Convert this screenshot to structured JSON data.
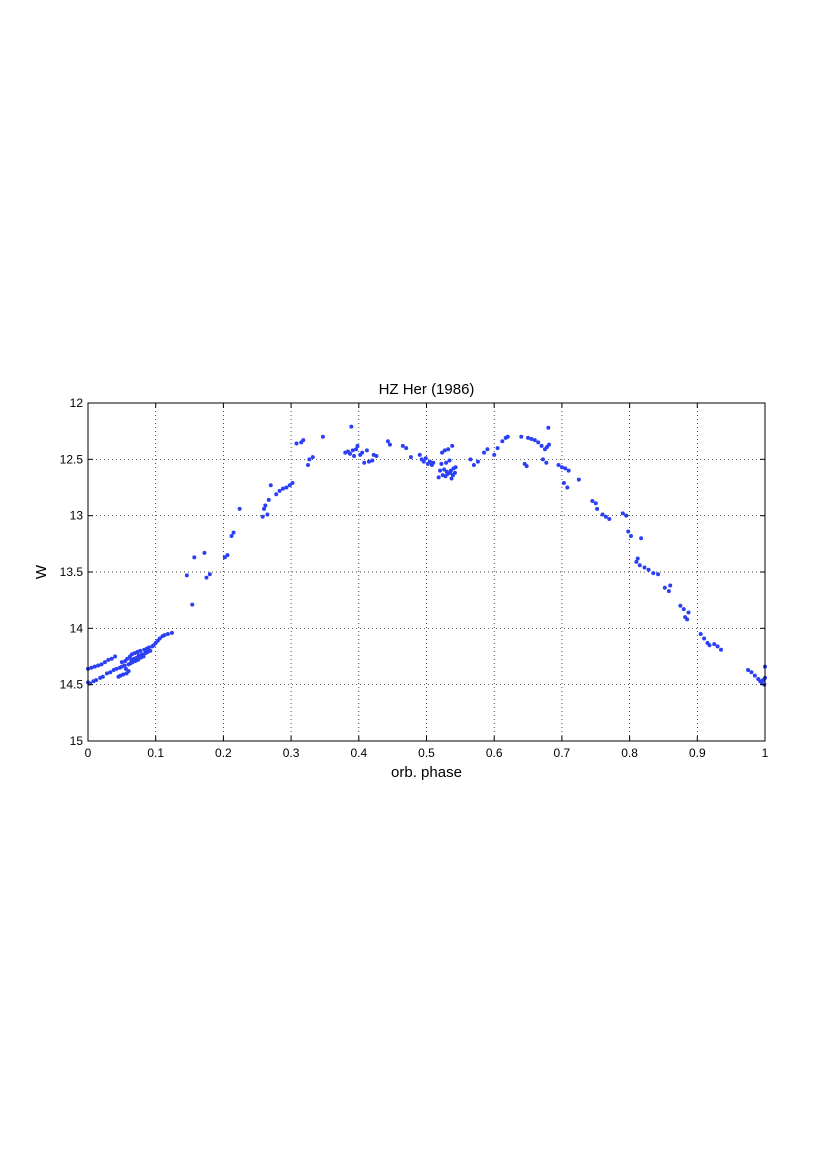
{
  "chart_data": {
    "type": "scatter",
    "title": "HZ Her (1986)",
    "xlabel": "orb. phase",
    "ylabel": "W",
    "xlim": [
      0,
      1
    ],
    "ylim": [
      12,
      15
    ],
    "y_reversed": true,
    "grid": true,
    "x_ticks": [
      "0",
      "0.1",
      "0.2",
      "0.3",
      "0.4",
      "0.5",
      "0.6",
      "0.7",
      "0.8",
      "0.9",
      "1"
    ],
    "y_ticks": [
      "12",
      "12.5",
      "13",
      "13.5",
      "14",
      "14.5",
      "15"
    ],
    "marker_color": "#2b3ff5",
    "series": [
      {
        "points": [
          [
            0.0,
            14.36
          ],
          [
            0.0,
            14.48
          ],
          [
            0.003,
            14.49
          ],
          [
            0.005,
            14.35
          ],
          [
            0.008,
            14.47
          ],
          [
            0.01,
            14.34
          ],
          [
            0.012,
            14.46
          ],
          [
            0.015,
            14.33
          ],
          [
            0.018,
            14.44
          ],
          [
            0.02,
            14.32
          ],
          [
            0.022,
            14.43
          ],
          [
            0.025,
            14.3
          ],
          [
            0.028,
            14.4
          ],
          [
            0.03,
            14.28
          ],
          [
            0.033,
            14.39
          ],
          [
            0.035,
            14.27
          ],
          [
            0.038,
            14.37
          ],
          [
            0.04,
            14.25
          ],
          [
            0.042,
            14.36
          ],
          [
            0.045,
            14.43
          ],
          [
            0.047,
            14.35
          ],
          [
            0.048,
            14.42
          ],
          [
            0.05,
            14.34
          ],
          [
            0.05,
            14.3
          ],
          [
            0.052,
            14.41
          ],
          [
            0.054,
            14.33
          ],
          [
            0.055,
            14.29
          ],
          [
            0.056,
            14.36
          ],
          [
            0.057,
            14.4
          ],
          [
            0.058,
            14.27
          ],
          [
            0.06,
            14.32
          ],
          [
            0.06,
            14.38
          ],
          [
            0.062,
            14.25
          ],
          [
            0.063,
            14.31
          ],
          [
            0.064,
            14.28
          ],
          [
            0.065,
            14.23
          ],
          [
            0.066,
            14.3
          ],
          [
            0.068,
            14.27
          ],
          [
            0.069,
            14.22
          ],
          [
            0.07,
            14.29
          ],
          [
            0.072,
            14.26
          ],
          [
            0.073,
            14.21
          ],
          [
            0.074,
            14.28
          ],
          [
            0.075,
            14.24
          ],
          [
            0.077,
            14.2
          ],
          [
            0.078,
            14.26
          ],
          [
            0.08,
            14.23
          ],
          [
            0.082,
            14.25
          ],
          [
            0.083,
            14.19
          ],
          [
            0.085,
            14.22
          ],
          [
            0.087,
            14.18
          ],
          [
            0.088,
            14.21
          ],
          [
            0.09,
            14.17
          ],
          [
            0.092,
            14.2
          ],
          [
            0.095,
            14.16
          ],
          [
            0.097,
            14.15
          ],
          [
            0.1,
            14.13
          ],
          [
            0.103,
            14.11
          ],
          [
            0.106,
            14.09
          ],
          [
            0.11,
            14.07
          ],
          [
            0.113,
            14.06
          ],
          [
            0.118,
            14.05
          ],
          [
            0.124,
            14.04
          ],
          [
            0.146,
            13.53
          ],
          [
            0.154,
            13.79
          ],
          [
            0.157,
            13.37
          ],
          [
            0.172,
            13.33
          ],
          [
            0.175,
            13.55
          ],
          [
            0.18,
            13.52
          ],
          [
            0.202,
            13.37
          ],
          [
            0.206,
            13.35
          ],
          [
            0.212,
            13.18
          ],
          [
            0.215,
            13.15
          ],
          [
            0.224,
            12.94
          ],
          [
            0.258,
            13.01
          ],
          [
            0.26,
            12.94
          ],
          [
            0.262,
            12.91
          ],
          [
            0.265,
            12.99
          ],
          [
            0.267,
            12.86
          ],
          [
            0.27,
            12.73
          ],
          [
            0.278,
            12.81
          ],
          [
            0.283,
            12.78
          ],
          [
            0.288,
            12.76
          ],
          [
            0.293,
            12.75
          ],
          [
            0.298,
            12.73
          ],
          [
            0.302,
            12.71
          ],
          [
            0.308,
            12.36
          ],
          [
            0.315,
            12.35
          ],
          [
            0.318,
            12.33
          ],
          [
            0.325,
            12.55
          ],
          [
            0.327,
            12.5
          ],
          [
            0.332,
            12.48
          ],
          [
            0.347,
            12.3
          ],
          [
            0.38,
            12.44
          ],
          [
            0.384,
            12.43
          ],
          [
            0.387,
            12.45
          ],
          [
            0.389,
            12.21
          ],
          [
            0.391,
            12.42
          ],
          [
            0.393,
            12.47
          ],
          [
            0.396,
            12.41
          ],
          [
            0.398,
            12.38
          ],
          [
            0.402,
            12.46
          ],
          [
            0.405,
            12.44
          ],
          [
            0.408,
            12.53
          ],
          [
            0.412,
            12.42
          ],
          [
            0.415,
            12.52
          ],
          [
            0.42,
            12.51
          ],
          [
            0.422,
            12.46
          ],
          [
            0.426,
            12.47
          ],
          [
            0.443,
            12.34
          ],
          [
            0.446,
            12.37
          ],
          [
            0.465,
            12.38
          ],
          [
            0.47,
            12.4
          ],
          [
            0.477,
            12.48
          ],
          [
            0.49,
            12.46
          ],
          [
            0.493,
            12.5
          ],
          [
            0.496,
            12.52
          ],
          [
            0.499,
            12.49
          ],
          [
            0.502,
            12.54
          ],
          [
            0.505,
            12.52
          ],
          [
            0.508,
            12.55
          ],
          [
            0.51,
            12.53
          ],
          [
            0.518,
            12.66
          ],
          [
            0.52,
            12.6
          ],
          [
            0.522,
            12.54
          ],
          [
            0.523,
            12.44
          ],
          [
            0.524,
            12.64
          ],
          [
            0.526,
            12.59
          ],
          [
            0.527,
            12.42
          ],
          [
            0.528,
            12.65
          ],
          [
            0.529,
            12.53
          ],
          [
            0.53,
            12.61
          ],
          [
            0.531,
            12.63
          ],
          [
            0.532,
            12.41
          ],
          [
            0.534,
            12.51
          ],
          [
            0.535,
            12.62
          ],
          [
            0.536,
            12.6
          ],
          [
            0.537,
            12.67
          ],
          [
            0.538,
            12.38
          ],
          [
            0.539,
            12.64
          ],
          [
            0.54,
            12.58
          ],
          [
            0.542,
            12.62
          ],
          [
            0.543,
            12.57
          ],
          [
            0.565,
            12.5
          ],
          [
            0.57,
            12.55
          ],
          [
            0.576,
            12.52
          ],
          [
            0.585,
            12.44
          ],
          [
            0.59,
            12.41
          ],
          [
            0.6,
            12.46
          ],
          [
            0.605,
            12.4
          ],
          [
            0.612,
            12.34
          ],
          [
            0.617,
            12.31
          ],
          [
            0.62,
            12.3
          ],
          [
            0.64,
            12.3
          ],
          [
            0.645,
            12.54
          ],
          [
            0.648,
            12.56
          ],
          [
            0.65,
            12.31
          ],
          [
            0.655,
            12.32
          ],
          [
            0.66,
            12.33
          ],
          [
            0.665,
            12.35
          ],
          [
            0.67,
            12.38
          ],
          [
            0.672,
            12.5
          ],
          [
            0.675,
            12.41
          ],
          [
            0.677,
            12.53
          ],
          [
            0.678,
            12.39
          ],
          [
            0.68,
            12.22
          ],
          [
            0.681,
            12.37
          ],
          [
            0.695,
            12.55
          ],
          [
            0.7,
            12.57
          ],
          [
            0.703,
            12.71
          ],
          [
            0.705,
            12.58
          ],
          [
            0.708,
            12.75
          ],
          [
            0.71,
            12.6
          ],
          [
            0.725,
            12.68
          ],
          [
            0.745,
            12.87
          ],
          [
            0.75,
            12.89
          ],
          [
            0.752,
            12.94
          ],
          [
            0.76,
            12.99
          ],
          [
            0.765,
            13.01
          ],
          [
            0.77,
            13.03
          ],
          [
            0.79,
            12.98
          ],
          [
            0.795,
            13.0
          ],
          [
            0.798,
            13.14
          ],
          [
            0.802,
            13.18
          ],
          [
            0.81,
            13.41
          ],
          [
            0.812,
            13.38
          ],
          [
            0.815,
            13.44
          ],
          [
            0.817,
            13.2
          ],
          [
            0.822,
            13.46
          ],
          [
            0.828,
            13.48
          ],
          [
            0.835,
            13.51
          ],
          [
            0.842,
            13.52
          ],
          [
            0.852,
            13.64
          ],
          [
            0.858,
            13.67
          ],
          [
            0.86,
            13.62
          ],
          [
            0.875,
            13.8
          ],
          [
            0.88,
            13.83
          ],
          [
            0.882,
            13.9
          ],
          [
            0.885,
            13.92
          ],
          [
            0.887,
            13.86
          ],
          [
            0.905,
            14.05
          ],
          [
            0.91,
            14.09
          ],
          [
            0.915,
            14.13
          ],
          [
            0.918,
            14.15
          ],
          [
            0.925,
            14.14
          ],
          [
            0.93,
            14.16
          ],
          [
            0.935,
            14.19
          ],
          [
            0.975,
            14.37
          ],
          [
            0.98,
            14.39
          ],
          [
            0.985,
            14.42
          ],
          [
            0.99,
            14.45
          ],
          [
            0.993,
            14.47
          ],
          [
            0.995,
            14.48
          ],
          [
            0.997,
            14.46
          ],
          [
            0.999,
            14.5
          ],
          [
            1.0,
            14.44
          ],
          [
            1.0,
            14.34
          ]
        ]
      }
    ]
  }
}
